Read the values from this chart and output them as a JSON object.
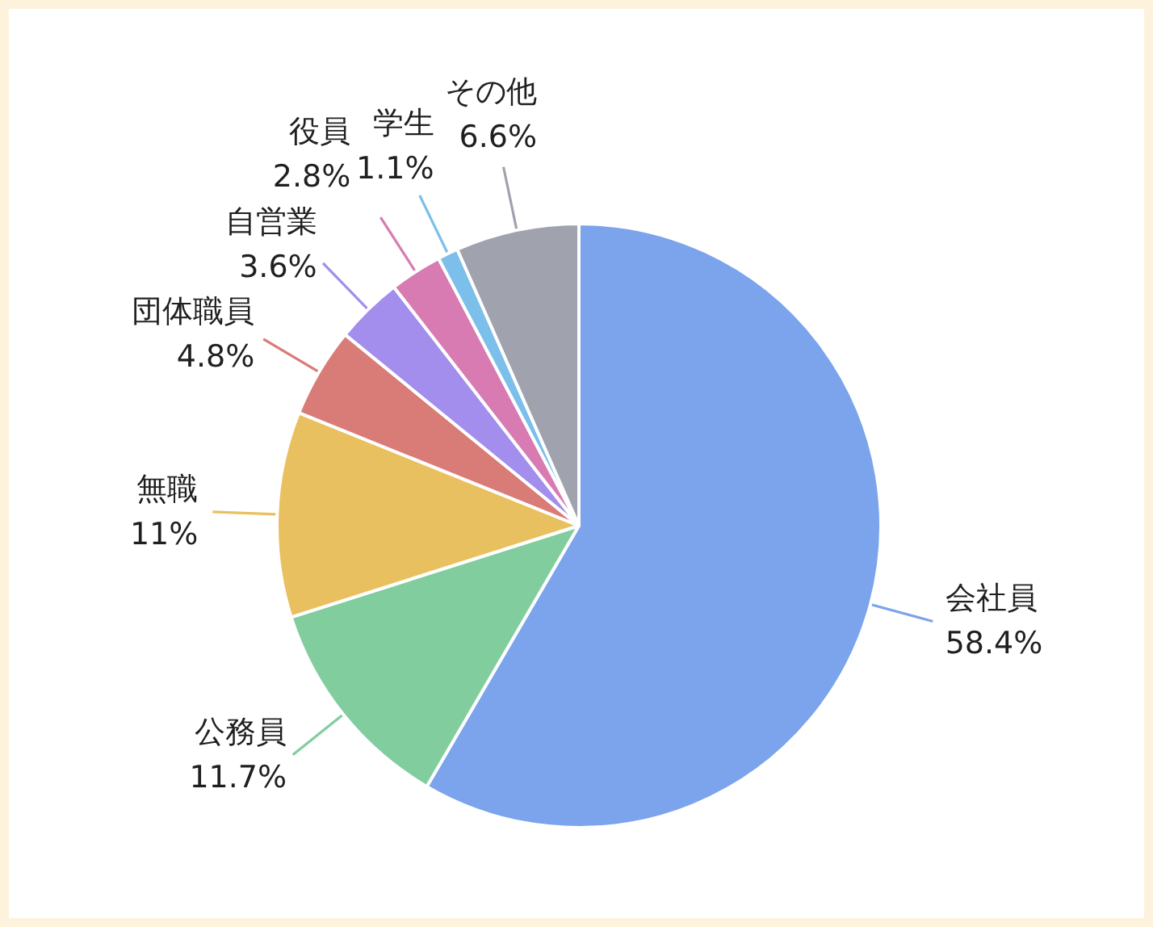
{
  "chart_data": {
    "type": "pie",
    "categories": [
      "会社員",
      "公務員",
      "無職",
      "団体職員",
      "自営業",
      "役員",
      "学生",
      "その他"
    ],
    "values": [
      58.4,
      11.7,
      11,
      4.8,
      3.6,
      2.8,
      1.1,
      6.6
    ],
    "colors": [
      "#7ba4ec",
      "#82cd9e",
      "#e9c05f",
      "#d97b76",
      "#a38ded",
      "#d87bb2",
      "#7bbfea",
      "#a0a3ad"
    ],
    "value_labels": [
      "58.4%",
      "11.7%",
      "11%",
      "4.8%",
      "3.6%",
      "2.8%",
      "1.1%",
      "6.6%"
    ]
  }
}
